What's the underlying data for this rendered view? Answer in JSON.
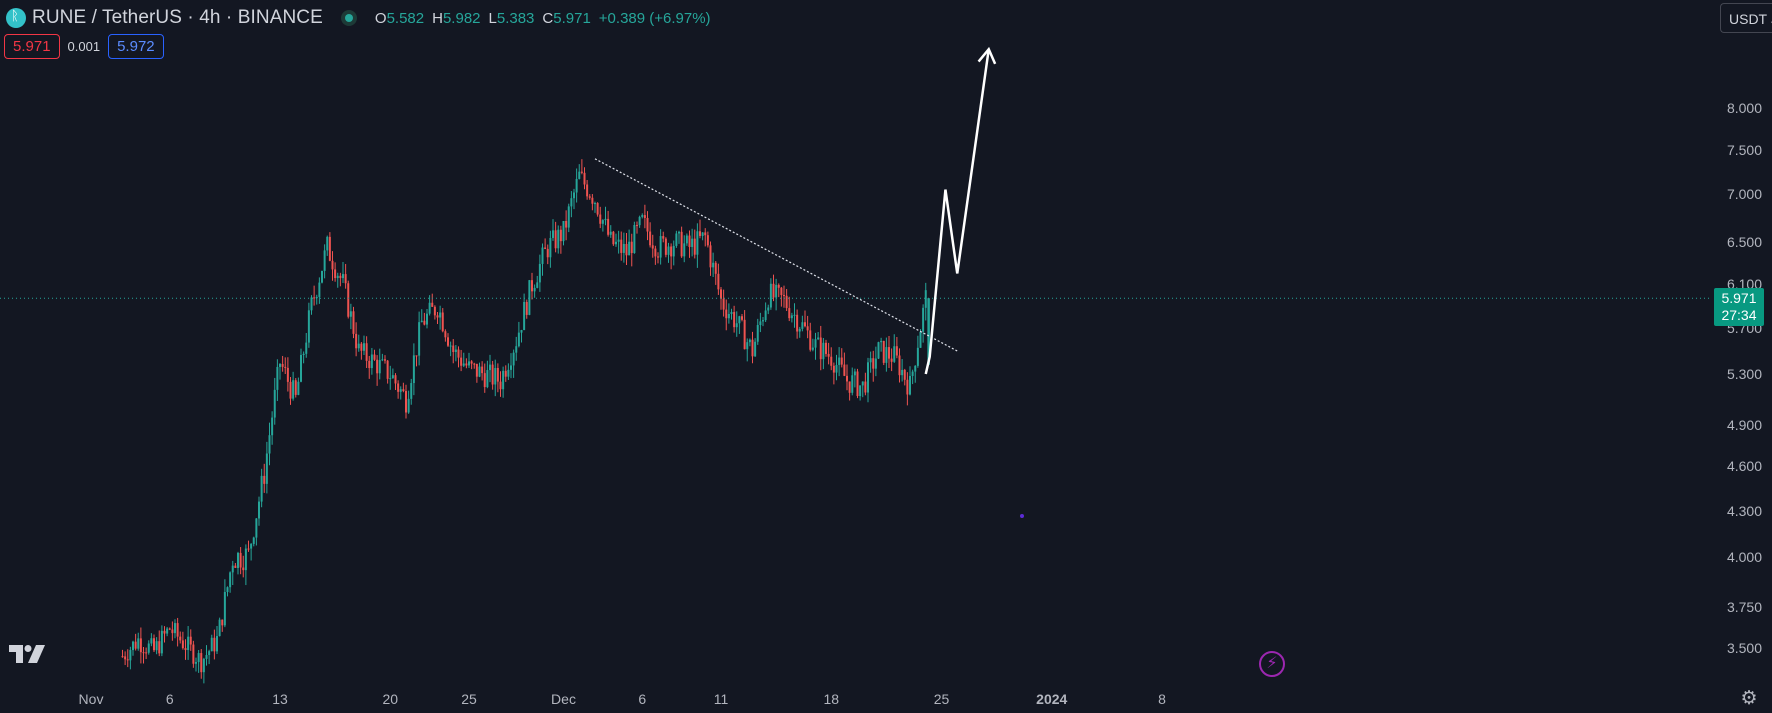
{
  "header": {
    "title": "RUNE / TetherUS · 4h · BINANCE",
    "ohlc": [
      {
        "k": "O",
        "v": "5.582"
      },
      {
        "k": "H",
        "v": "5.982"
      },
      {
        "k": "L",
        "v": "5.383"
      },
      {
        "k": "C",
        "v": "5.971"
      }
    ],
    "change": "+0.389 (+6.97%)"
  },
  "quote": {
    "sell": "5.971",
    "spread": "0.001",
    "buy": "5.972"
  },
  "currency": "USDT",
  "price_badge": {
    "price": "5.971",
    "countdown": "27:34"
  },
  "colors": {
    "background": "#131722",
    "up": "#26a69a",
    "down": "#ef5350",
    "text": "#d1d4dc",
    "axis_text": "#b2b5be"
  },
  "chart_data": {
    "type": "candlestick",
    "symbol": "RUNE / TetherUS",
    "timeframe": "4h",
    "exchange": "BINANCE",
    "y_ticks": [
      3.5,
      3.75,
      4.0,
      4.3,
      4.6,
      4.9,
      5.3,
      5.7,
      6.1,
      6.5,
      7.0,
      7.5,
      8.0
    ],
    "y_tick_labels": [
      "3.500",
      "3.750",
      "4.000",
      "4.300",
      "4.600",
      "4.900",
      "5.300",
      "5.700",
      "6.100",
      "6.500",
      "7.000",
      "7.500",
      "8.000"
    ],
    "ylim": [
      3.4,
      8.7
    ],
    "x_ticks": [
      {
        "label": "Nov",
        "date": "2023-11-01"
      },
      {
        "label": "6",
        "date": "2023-11-06"
      },
      {
        "label": "13",
        "date": "2023-11-13"
      },
      {
        "label": "20",
        "date": "2023-11-20"
      },
      {
        "label": "25",
        "date": "2023-11-25"
      },
      {
        "label": "Dec",
        "date": "2023-12-01"
      },
      {
        "label": "6",
        "date": "2023-12-06"
      },
      {
        "label": "11",
        "date": "2023-12-11"
      },
      {
        "label": "18",
        "date": "2023-12-18"
      },
      {
        "label": "25",
        "date": "2023-12-25"
      },
      {
        "label": "2024",
        "date": "2024-01-01"
      },
      {
        "label": "8",
        "date": "2024-01-08"
      }
    ],
    "last_price": 5.971,
    "price_path": [
      [
        "2023-11-03",
        3.45
      ],
      [
        "2023-11-04",
        3.55
      ],
      [
        "2023-11-05",
        3.48
      ],
      [
        "2023-11-06",
        3.62
      ],
      [
        "2023-11-07",
        3.52
      ],
      [
        "2023-11-08",
        3.42
      ],
      [
        "2023-11-09",
        3.55
      ],
      [
        "2023-11-10",
        4.0
      ],
      [
        "2023-11-11",
        4.02
      ],
      [
        "2023-11-12",
        4.55
      ],
      [
        "2023-11-13",
        5.4
      ],
      [
        "2023-11-14",
        5.1
      ],
      [
        "2023-11-15",
        5.9
      ],
      [
        "2023-11-16",
        6.45
      ],
      [
        "2023-11-17",
        6.1
      ],
      [
        "2023-11-18",
        5.5
      ],
      [
        "2023-11-19",
        5.4
      ],
      [
        "2023-11-20",
        5.3
      ],
      [
        "2023-11-21",
        5.1
      ],
      [
        "2023-11-22",
        5.75
      ],
      [
        "2023-11-23",
        5.9
      ],
      [
        "2023-11-24",
        5.5
      ],
      [
        "2023-11-25",
        5.35
      ],
      [
        "2023-11-26",
        5.3
      ],
      [
        "2023-11-27",
        5.25
      ],
      [
        "2023-11-28",
        5.6
      ],
      [
        "2023-11-29",
        6.1
      ],
      [
        "2023-11-30",
        6.45
      ],
      [
        "2023-12-01",
        6.6
      ],
      [
        "2023-12-02",
        7.2
      ],
      [
        "2023-12-03",
        6.95
      ],
      [
        "2023-12-04",
        6.5
      ],
      [
        "2023-12-05",
        6.4
      ],
      [
        "2023-12-06",
        6.7
      ],
      [
        "2023-12-07",
        6.45
      ],
      [
        "2023-12-08",
        6.5
      ],
      [
        "2023-12-09",
        6.45
      ],
      [
        "2023-12-10",
        6.55
      ],
      [
        "2023-12-11",
        5.95
      ],
      [
        "2023-12-12",
        5.75
      ],
      [
        "2023-12-13",
        5.5
      ],
      [
        "2023-12-14",
        6.0
      ],
      [
        "2023-12-15",
        5.95
      ],
      [
        "2023-12-16",
        5.75
      ],
      [
        "2023-12-17",
        5.55
      ],
      [
        "2023-12-18",
        5.45
      ],
      [
        "2023-12-19",
        5.25
      ],
      [
        "2023-12-20",
        5.2
      ],
      [
        "2023-12-21",
        5.5
      ],
      [
        "2023-12-22",
        5.45
      ],
      [
        "2023-12-23",
        5.2
      ],
      [
        "2023-12-24",
        5.97
      ]
    ],
    "trendline": {
      "from": [
        "2023-12-03",
        7.4
      ],
      "to": [
        "2023-12-26",
        5.5
      ]
    },
    "projection_arrow": [
      [
        "2023-12-24",
        5.3
      ],
      [
        "2023-12-24T06",
        5.45
      ],
      [
        "2023-12-25T06",
        7.05
      ],
      [
        "2023-12-26",
        6.2
      ],
      [
        "2023-12-28",
        8.7
      ]
    ]
  }
}
